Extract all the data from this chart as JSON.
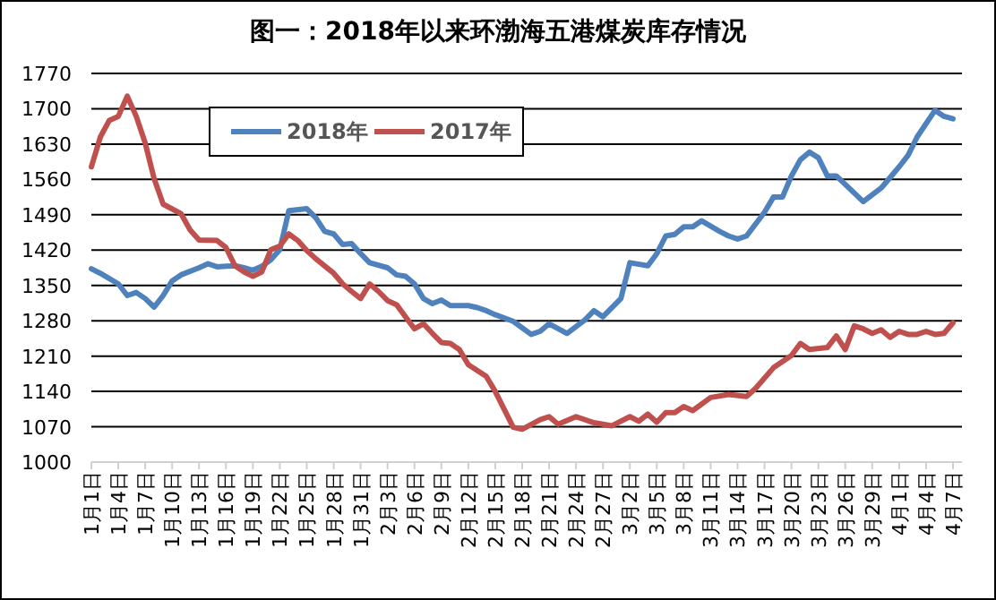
{
  "chart_data": {
    "type": "line",
    "title": "图一：2018年以来环渤海五港煤炭库存情况",
    "ylim": [
      1000,
      1770
    ],
    "yticks": [
      1000,
      1070,
      1140,
      1210,
      1280,
      1350,
      1420,
      1490,
      1560,
      1630,
      1700,
      1770
    ],
    "xlim": [
      "--01-01",
      "--04-08"
    ],
    "xticks": [
      {
        "value": "--01-01",
        "label": "1月1日"
      },
      {
        "value": "--01-04",
        "label": "1月4日"
      },
      {
        "value": "--01-07",
        "label": "1月7日"
      },
      {
        "value": "--01-10",
        "label": "1月10日"
      },
      {
        "value": "--01-13",
        "label": "1月13日"
      },
      {
        "value": "--01-16",
        "label": "1月16日"
      },
      {
        "value": "--01-19",
        "label": "1月19日"
      },
      {
        "value": "--01-22",
        "label": "1月22日"
      },
      {
        "value": "--01-25",
        "label": "1月25日"
      },
      {
        "value": "--01-28",
        "label": "1月28日"
      },
      {
        "value": "--01-31",
        "label": "1月31日"
      },
      {
        "value": "--02-03",
        "label": "2月3日"
      },
      {
        "value": "--02-06",
        "label": "2月6日"
      },
      {
        "value": "--02-09",
        "label": "2月9日"
      },
      {
        "value": "--02-12",
        "label": "2月12日"
      },
      {
        "value": "--02-15",
        "label": "2月15日"
      },
      {
        "value": "--02-18",
        "label": "2月18日"
      },
      {
        "value": "--02-21",
        "label": "2月21日"
      },
      {
        "value": "--02-24",
        "label": "2月24日"
      },
      {
        "value": "--02-27",
        "label": "2月27日"
      },
      {
        "value": "--03-02",
        "label": "3月2日"
      },
      {
        "value": "--03-05",
        "label": "3月5日"
      },
      {
        "value": "--03-08",
        "label": "3月8日"
      },
      {
        "value": "--03-11",
        "label": "3月11日"
      },
      {
        "value": "--03-14",
        "label": "3月14日"
      },
      {
        "value": "--03-17",
        "label": "3月17日"
      },
      {
        "value": "--03-20",
        "label": "3月20日"
      },
      {
        "value": "--03-23",
        "label": "3月23日"
      },
      {
        "value": "--03-26",
        "label": "3月26日"
      },
      {
        "value": "--03-29",
        "label": "3月29日"
      },
      {
        "value": "--04-01",
        "label": "4月1日"
      },
      {
        "value": "--04-04",
        "label": "4月4日"
      },
      {
        "value": "--04-07",
        "label": "4月7日"
      }
    ],
    "grid": "y",
    "legend": "top",
    "marker": "none",
    "line_style": "solid",
    "series": [
      {
        "name": "2018年",
        "color": "#4f81bd",
        "x": [
          "--01-01",
          "--01-02",
          "--01-04",
          "--01-05",
          "--01-06",
          "--01-07",
          "--01-08",
          "--01-09",
          "--01-10",
          "--01-11",
          "--01-13",
          "--01-14",
          "--01-15",
          "--01-17",
          "--01-18",
          "--01-19",
          "--01-20",
          "--01-21",
          "--01-22",
          "--01-23",
          "--01-25",
          "--01-26",
          "--01-27",
          "--01-28",
          "--01-29",
          "--01-30",
          "--01-31",
          "--02-01",
          "--02-03",
          "--02-04",
          "--02-05",
          "--02-06",
          "--02-07",
          "--02-08",
          "--02-09",
          "--02-10",
          "--02-12",
          "--02-13",
          "--02-14",
          "--02-15",
          "--02-17",
          "--02-19",
          "--02-20",
          "--02-21",
          "--02-23",
          "--02-25",
          "--02-26",
          "--02-27",
          "--03-01",
          "--03-02",
          "--03-04",
          "--03-05",
          "--03-06",
          "--03-07",
          "--03-08",
          "--03-09",
          "--03-10",
          "--03-12",
          "--03-13",
          "--03-14",
          "--03-15",
          "--03-17",
          "--03-18",
          "--03-19",
          "--03-20",
          "--03-21",
          "--03-22",
          "--03-23",
          "--03-24",
          "--03-25",
          "--03-28",
          "--03-30",
          "--04-01",
          "--04-02",
          "--04-03",
          "--04-05",
          "--04-06",
          "--04-07"
        ],
        "values": [
          1383,
          1374,
          1353,
          1330,
          1336,
          1324,
          1307,
          1330,
          1359,
          1371,
          1385,
          1393,
          1387,
          1389,
          1385,
          1380,
          1388,
          1401,
          1421,
          1498,
          1502,
          1484,
          1457,
          1452,
          1431,
          1433,
          1413,
          1395,
          1385,
          1371,
          1368,
          1353,
          1324,
          1314,
          1321,
          1310,
          1310,
          1306,
          1300,
          1292,
          1279,
          1253,
          1259,
          1274,
          1255,
          1282,
          1300,
          1288,
          1324,
          1395,
          1389,
          1413,
          1448,
          1451,
          1466,
          1466,
          1478,
          1457,
          1448,
          1442,
          1448,
          1495,
          1525,
          1525,
          1567,
          1599,
          1614,
          1603,
          1567,
          1567,
          1516,
          1543,
          1585,
          1608,
          1644,
          1697,
          1685,
          1680
        ]
      },
      {
        "name": "2017年",
        "color": "#c0504d",
        "x": [
          "--01-01",
          "--01-02",
          "--01-03",
          "--01-04",
          "--01-05",
          "--01-06",
          "--01-07",
          "--01-08",
          "--01-09",
          "--01-11",
          "--01-12",
          "--01-13",
          "--01-15",
          "--01-16",
          "--01-17",
          "--01-18",
          "--01-19",
          "--01-20",
          "--01-21",
          "--01-22",
          "--01-23",
          "--01-24",
          "--01-25",
          "--01-26",
          "--01-28",
          "--01-29",
          "--01-30",
          "--01-31",
          "--02-01",
          "--02-02",
          "--02-03",
          "--02-04",
          "--02-05",
          "--02-06",
          "--02-07",
          "--02-08",
          "--02-09",
          "--02-10",
          "--02-11",
          "--02-12",
          "--02-14",
          "--02-15",
          "--02-17",
          "--02-18",
          "--02-20",
          "--02-21",
          "--02-22",
          "--02-24",
          "--02-26",
          "--02-28",
          "--03-02",
          "--03-03",
          "--03-04",
          "--03-05",
          "--03-06",
          "--03-07",
          "--03-08",
          "--03-09",
          "--03-11",
          "--03-13",
          "--03-15",
          "--03-16",
          "--03-18",
          "--03-20",
          "--03-21",
          "--03-22",
          "--03-24",
          "--03-25",
          "--03-26",
          "--03-27",
          "--03-28",
          "--03-29",
          "--03-30",
          "--03-31",
          "--04-01",
          "--04-02",
          "--04-03",
          "--04-04",
          "--04-05",
          "--04-06",
          "--04-07"
        ],
        "values": [
          1585,
          1644,
          1677,
          1685,
          1725,
          1685,
          1632,
          1561,
          1511,
          1492,
          1460,
          1440,
          1439,
          1425,
          1389,
          1377,
          1368,
          1377,
          1421,
          1428,
          1452,
          1439,
          1419,
          1403,
          1374,
          1353,
          1338,
          1324,
          1353,
          1338,
          1320,
          1312,
          1288,
          1264,
          1274,
          1255,
          1237,
          1235,
          1223,
          1193,
          1170,
          1140,
          1069,
          1065,
          1084,
          1090,
          1075,
          1090,
          1078,
          1072,
          1090,
          1081,
          1095,
          1079,
          1098,
          1098,
          1110,
          1102,
          1128,
          1134,
          1130,
          1146,
          1187,
          1211,
          1235,
          1223,
          1227,
          1250,
          1223,
          1270,
          1264,
          1255,
          1262,
          1247,
          1259,
          1253,
          1253,
          1259,
          1253,
          1255,
          1276
        ]
      }
    ]
  }
}
